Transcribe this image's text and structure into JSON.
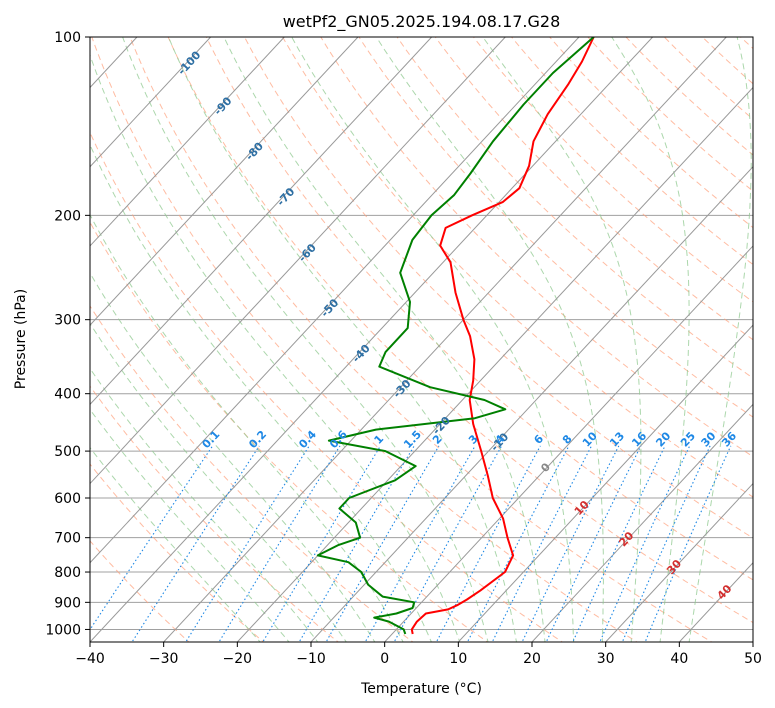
{
  "chart_data": {
    "type": "line",
    "subtype": "skew-t log-p",
    "title": "wetPf2_GN05.2025.194.08.17.G28",
    "xlabel": "Temperature (°C)",
    "ylabel": "Pressure (hPa)",
    "xlim": [
      -40,
      50
    ],
    "ylim": [
      1050,
      100
    ],
    "yscale": "log",
    "grid": true,
    "x_ticks": [
      -40,
      -30,
      -20,
      -10,
      0,
      10,
      20,
      30,
      40,
      50
    ],
    "y_ticks": [
      100,
      200,
      300,
      400,
      500,
      600,
      700,
      800,
      900,
      1000
    ],
    "x_tick_labels": [
      "−40",
      "−30",
      "−20",
      "−10",
      "0",
      "10",
      "20",
      "30",
      "40",
      "50"
    ],
    "y_tick_labels": [
      "100",
      "200",
      "300",
      "400",
      "500",
      "600",
      "700",
      "800",
      "900",
      "1000"
    ],
    "series": [
      {
        "kind": "temperature",
        "color": "#ff0000",
        "points": [
          {
            "p": 1018,
            "t": 2.8
          },
          {
            "p": 1000,
            "t": 2.1
          },
          {
            "p": 970,
            "t": 1.8
          },
          {
            "p": 940,
            "t": 2.0
          },
          {
            "p": 925,
            "t": 4.5
          },
          {
            "p": 910,
            "t": 5.2
          },
          {
            "p": 890,
            "t": 5.8
          },
          {
            "p": 860,
            "t": 6.5
          },
          {
            "p": 800,
            "t": 7.5
          },
          {
            "p": 750,
            "t": 6.5
          },
          {
            "p": 700,
            "t": 3.5
          },
          {
            "p": 650,
            "t": 0.5
          },
          {
            "p": 600,
            "t": -3.5
          },
          {
            "p": 550,
            "t": -7.0
          },
          {
            "p": 500,
            "t": -11.0
          },
          {
            "p": 450,
            "t": -15.5
          },
          {
            "p": 410,
            "t": -19.0
          },
          {
            "p": 380,
            "t": -21.0
          },
          {
            "p": 350,
            "t": -23.5
          },
          {
            "p": 320,
            "t": -27.0
          },
          {
            "p": 300,
            "t": -30.0
          },
          {
            "p": 270,
            "t": -34.5
          },
          {
            "p": 240,
            "t": -39.0
          },
          {
            "p": 225,
            "t": -42.5
          },
          {
            "p": 210,
            "t": -44.0
          },
          {
            "p": 200,
            "t": -42.0
          },
          {
            "p": 190,
            "t": -39.5
          },
          {
            "p": 180,
            "t": -39.0
          },
          {
            "p": 165,
            "t": -40.5
          },
          {
            "p": 150,
            "t": -43.0
          },
          {
            "p": 135,
            "t": -44.5
          },
          {
            "p": 120,
            "t": -45.5
          },
          {
            "p": 110,
            "t": -46.5
          },
          {
            "p": 100,
            "t": -48.0
          }
        ]
      },
      {
        "kind": "dewpoint",
        "color": "#008000",
        "points": [
          {
            "p": 1018,
            "t": 1.8
          },
          {
            "p": 1000,
            "t": 1.0
          },
          {
            "p": 970,
            "t": -2.0
          },
          {
            "p": 955,
            "t": -4.5
          },
          {
            "p": 940,
            "t": -2.0
          },
          {
            "p": 920,
            "t": -0.5
          },
          {
            "p": 900,
            "t": -1.0
          },
          {
            "p": 880,
            "t": -6.0
          },
          {
            "p": 840,
            "t": -9.5
          },
          {
            "p": 800,
            "t": -12.0
          },
          {
            "p": 770,
            "t": -15.0
          },
          {
            "p": 750,
            "t": -20.0
          },
          {
            "p": 720,
            "t": -18.5
          },
          {
            "p": 700,
            "t": -16.5
          },
          {
            "p": 660,
            "t": -19.0
          },
          {
            "p": 625,
            "t": -23.0
          },
          {
            "p": 600,
            "t": -23.0
          },
          {
            "p": 560,
            "t": -19.0
          },
          {
            "p": 530,
            "t": -18.0
          },
          {
            "p": 500,
            "t": -24.0
          },
          {
            "p": 480,
            "t": -33.0
          },
          {
            "p": 460,
            "t": -28.0
          },
          {
            "p": 440,
            "t": -16.0
          },
          {
            "p": 425,
            "t": -13.0
          },
          {
            "p": 410,
            "t": -17.0
          },
          {
            "p": 390,
            "t": -26.0
          },
          {
            "p": 360,
            "t": -35.5
          },
          {
            "p": 340,
            "t": -36.5
          },
          {
            "p": 310,
            "t": -36.5
          },
          {
            "p": 280,
            "t": -39.5
          },
          {
            "p": 250,
            "t": -44.5
          },
          {
            "p": 220,
            "t": -47.0
          },
          {
            "p": 200,
            "t": -47.5
          },
          {
            "p": 185,
            "t": -47.0
          },
          {
            "p": 170,
            "t": -47.5
          },
          {
            "p": 150,
            "t": -48.5
          },
          {
            "p": 130,
            "t": -49.0
          },
          {
            "p": 115,
            "t": -49.0
          },
          {
            "p": 100,
            "t": -48.0
          }
        ]
      }
    ],
    "isotherm_labels": [
      "-100",
      "-90",
      "-80",
      "-70",
      "-60",
      "-50",
      "-40",
      "-30",
      "-20",
      "-10"
    ],
    "isotherm_label_color": "#2e6fa3",
    "mixing_ratio_labels": [
      "0.1",
      "0.2",
      "0.4",
      "0.6",
      "1",
      "1.5",
      "2",
      "3",
      "4",
      "6",
      "8",
      "10",
      "13",
      "16",
      "20",
      "25",
      "30",
      "36"
    ],
    "mixing_ratio_color": "#1e88e5",
    "positive_isotherm_labels": [
      "0",
      "10",
      "20",
      "30",
      "40"
    ],
    "zero_isotherm_color": "#888888",
    "positive_isotherm_color": "#d32f2f",
    "reference_line_colors": {
      "isotherm": "#999999",
      "dry_adiabat": "#ffa07a",
      "moist_adiabat": "#90c990",
      "boundary_arc": "#d8c4a8",
      "isobar": "#a0a0a0"
    }
  }
}
